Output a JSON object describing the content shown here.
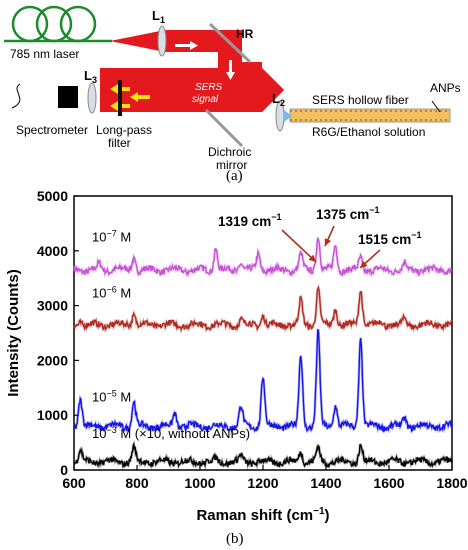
{
  "setup": {
    "laser_label": "785 nm laser",
    "lens1_label": "L",
    "lens1_sub": "1",
    "hr_label": "HR",
    "lens2_label": "L",
    "lens2_sub": "2",
    "lens3_label": "L",
    "lens3_sub": "3",
    "sers_signal_line1": "SERS",
    "sers_signal_line2": "signal",
    "spectrometer_label": "Spectrometer",
    "longpass_line1": "Long-pass",
    "longpass_line2": "filter",
    "dichroic_line1": "Dichroic",
    "dichroic_line2": "mirror",
    "fiber_label": "SERS hollow fiber",
    "anps_label": "ANPs",
    "solution_label": "R6G/Ethanol solution",
    "colors": {
      "beam": "#e3191e",
      "fiber": "#1e8a2e",
      "tube": "#f0c060",
      "dots": "#c8801e",
      "lens": "#d8dde6",
      "spectrometer": "#000000"
    }
  },
  "panel_a_caption": "(a)",
  "panel_b_caption": "(b)",
  "chart_data": {
    "type": "line",
    "xlabel": "Raman shift (cm",
    "xlabel_sup": "−1",
    "xlabel_end": ")",
    "ylabel": "Intensity (Counts)",
    "xlim": [
      600,
      1800
    ],
    "ylim": [
      0,
      5000
    ],
    "xticks": [
      600,
      800,
      1000,
      1200,
      1400,
      1600,
      1800
    ],
    "yticks": [
      0,
      1000,
      2000,
      3000,
      4000,
      5000
    ],
    "peak_centers": [
      620,
      680,
      730,
      770,
      790,
      920,
      1050,
      1130,
      1185,
      1200,
      1320,
      1363,
      1375,
      1430,
      1510,
      1575,
      1650,
      1760
    ],
    "series": [
      {
        "name": "10",
        "name_sup": "−7",
        "name_unit": " M",
        "color": "#c850d8",
        "baseline": 3650,
        "peaks": [
          0,
          100,
          40,
          0,
          230,
          0,
          400,
          150,
          300,
          0,
          280,
          0,
          630,
          450,
          230,
          0,
          120,
          0
        ]
      },
      {
        "name": "10",
        "name_sup": "−6",
        "name_unit": " M",
        "color": "#b02820",
        "baseline": 2650,
        "peaks": [
          80,
          0,
          0,
          30,
          200,
          0,
          0,
          100,
          0,
          180,
          450,
          0,
          650,
          300,
          650,
          50,
          100,
          0
        ]
      },
      {
        "name": "10",
        "name_sup": "−5",
        "name_unit": " M",
        "color": "#1414e6",
        "baseline": 800,
        "peaks": [
          500,
          0,
          0,
          0,
          450,
          250,
          0,
          350,
          0,
          900,
          1300,
          0,
          1700,
          400,
          1600,
          0,
          150,
          0
        ]
      },
      {
        "name": "10",
        "name_sup": "−3",
        "name_unit": " M (×10, without ANPs)",
        "color": "#000000",
        "baseline": 150,
        "peaks": [
          200,
          0,
          0,
          0,
          250,
          0,
          50,
          100,
          0,
          0,
          200,
          0,
          250,
          0,
          300,
          0,
          0,
          0
        ]
      }
    ],
    "annotations": [
      {
        "text": "1319 cm",
        "sup": "−1",
        "x": 1319
      },
      {
        "text": "1375 cm",
        "sup": "−1",
        "x": 1375
      },
      {
        "text": "1515 cm",
        "sup": "−1",
        "x": 1515
      }
    ]
  }
}
